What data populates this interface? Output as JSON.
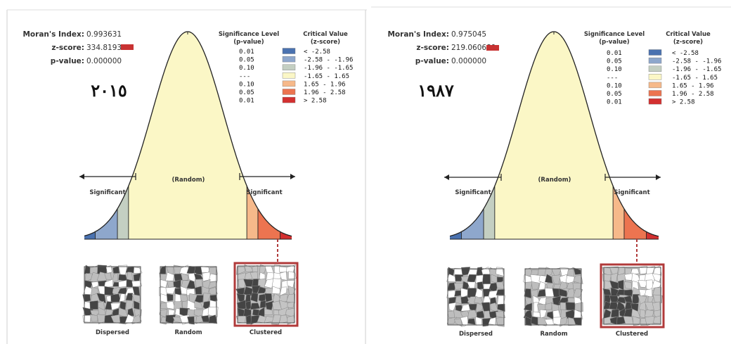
{
  "panels": [
    {
      "stats": {
        "morans_label": "Moran's Index:",
        "morans_value": "0.993631",
        "z_label": "z-score:",
        "z_value": "334.819350",
        "p_label": "p-value:",
        "p_value": "0.000000"
      },
      "year": "٢٠١٥"
    },
    {
      "stats": {
        "morans_label": "Moran's Index:",
        "morans_value": "0.975045",
        "z_label": "z-score:",
        "z_value": "219.060689",
        "p_label": "p-value:",
        "p_value": "0.000000"
      },
      "year": "١٩٨٧"
    }
  ],
  "legend": {
    "sig_header_1": "Significance Level",
    "sig_header_2": "(p-value)",
    "crit_header_1": "Critical Value",
    "crit_header_2": "(z-score)",
    "rows": [
      {
        "p": "0.01",
        "z": "< -2.58",
        "color": "#4a72b0"
      },
      {
        "p": "0.05",
        "z": "-2.58 - -1.96",
        "color": "#8ea7cc"
      },
      {
        "p": "0.10",
        "z": "-1.96 - -1.65",
        "color": "#c4cfc2"
      },
      {
        "p": "---",
        "z": "-1.65 - 1.65",
        "color": "#fbf7c6"
      },
      {
        "p": "0.10",
        "z": "1.65 - 1.96",
        "color": "#f6b98a"
      },
      {
        "p": "0.05",
        "z": "1.96 - 2.58",
        "color": "#ec7450"
      },
      {
        "p": "0.01",
        "z": "> 2.58",
        "color": "#d33030"
      }
    ]
  },
  "curve": {
    "random_label": "(Random)",
    "significant_left": "Significant",
    "significant_right": "Significant"
  },
  "patterns": {
    "dispersed": "Dispersed",
    "random": "Random",
    "clustered": "Clustered"
  },
  "colors": {
    "zscore_swatch": "#c83232",
    "highlight_border": "#b03a3a"
  }
}
